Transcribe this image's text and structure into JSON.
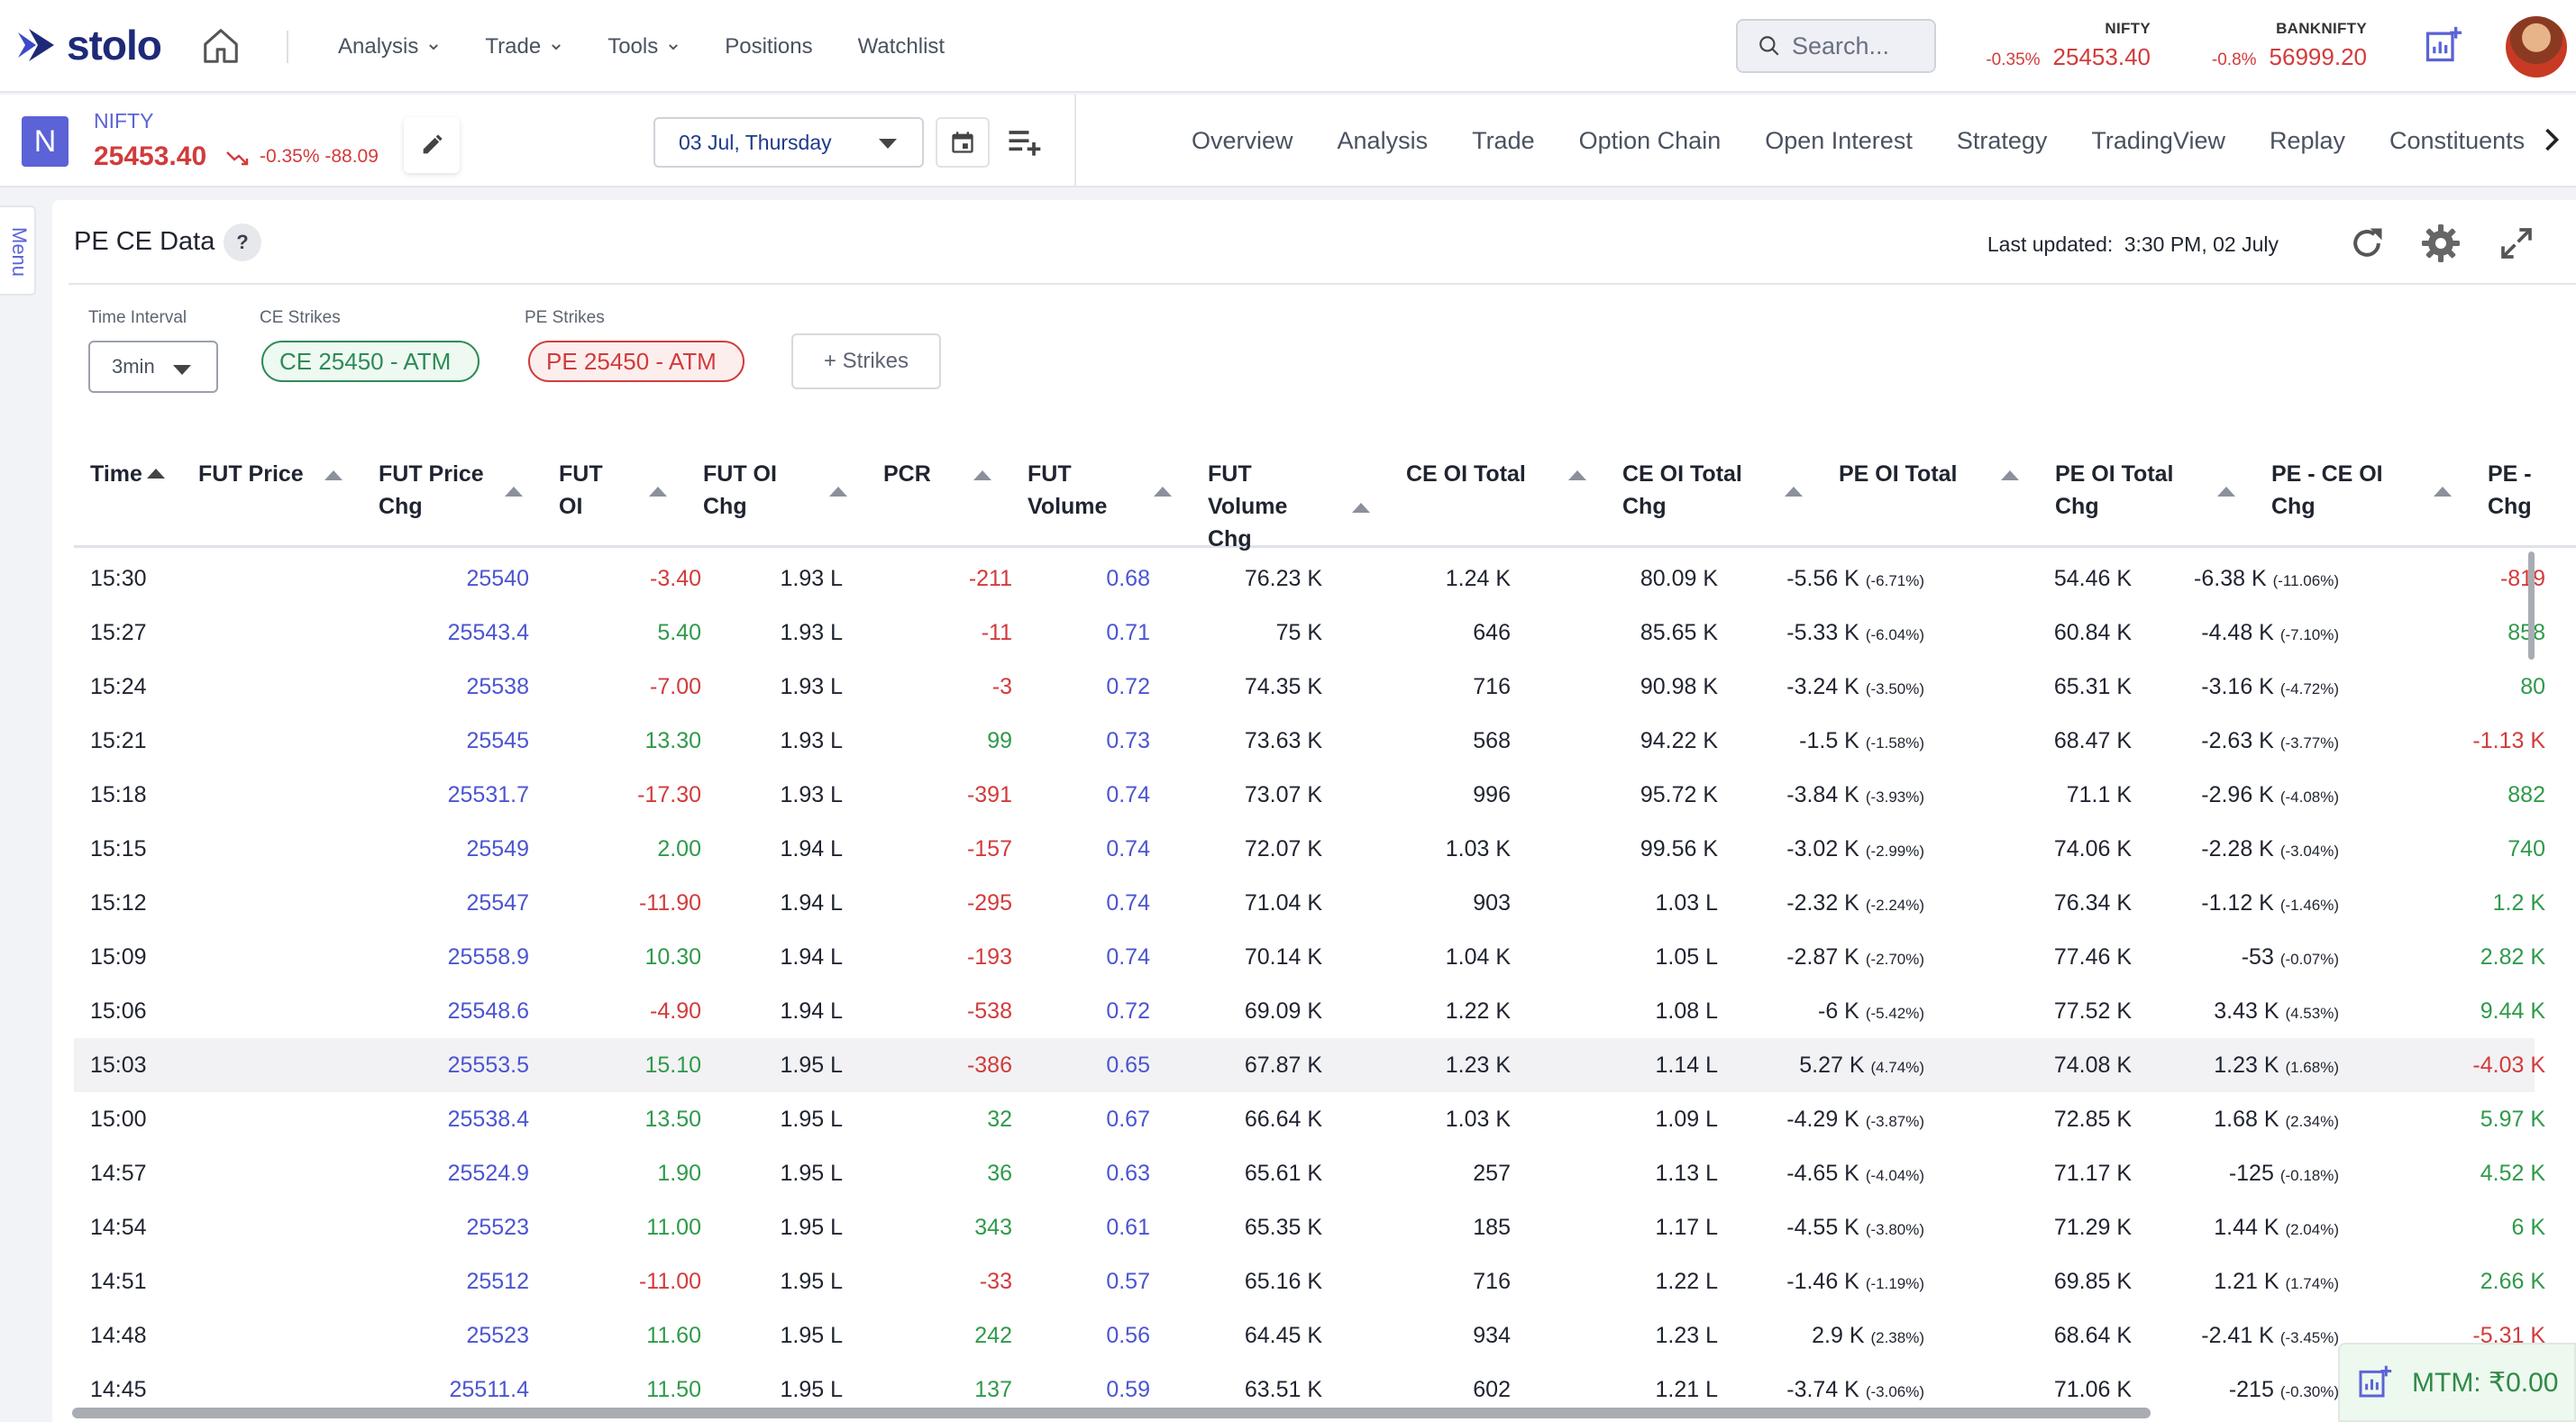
{
  "brand": {
    "name": "stolo"
  },
  "nav": {
    "items": [
      {
        "label": "Analysis",
        "dropdown": true
      },
      {
        "label": "Trade",
        "dropdown": true
      },
      {
        "label": "Tools",
        "dropdown": true
      },
      {
        "label": "Positions",
        "dropdown": false
      },
      {
        "label": "Watchlist",
        "dropdown": false
      }
    ]
  },
  "search": {
    "placeholder": "Search..."
  },
  "indices": [
    {
      "name": "NIFTY",
      "change_pct": "-0.35%",
      "value": "25453.40"
    },
    {
      "name": "BANKNIFTY",
      "change_pct": "-0.8%",
      "value": "56999.20"
    }
  ],
  "symbol": {
    "badge": "N",
    "name": "NIFTY",
    "price": "25453.40",
    "change": "-0.35% -88.09"
  },
  "expiry": {
    "selected": "03 Jul, Thursday"
  },
  "tabs": [
    "Overview",
    "Analysis",
    "Trade",
    "Option Chain",
    "Open Interest",
    "Strategy",
    "TradingView",
    "Replay",
    "Constituents"
  ],
  "side_menu": {
    "label": "Menu"
  },
  "panel": {
    "title": "PE CE Data",
    "help": "?",
    "last_updated_label": "Last updated:",
    "last_updated_value": "3:30 PM, 02 July",
    "time_interval_label": "Time Interval",
    "time_interval_value": "3min",
    "ce_strikes_label": "CE Strikes",
    "ce_strike": "CE 25450 - ATM",
    "pe_strikes_label": "PE Strikes",
    "pe_strike": "PE 25450 - ATM",
    "add_strikes": "+ Strikes"
  },
  "table": {
    "columns": [
      {
        "label": "Time"
      },
      {
        "label": "FUT Price"
      },
      {
        "label": "FUT Price Chg"
      },
      {
        "label": "FUT OI"
      },
      {
        "label": "FUT OI Chg"
      },
      {
        "label": "PCR"
      },
      {
        "label": "FUT Volume"
      },
      {
        "label": "FUT Volume Chg"
      },
      {
        "label": "CE OI Total"
      },
      {
        "label": "CE OI Total Chg"
      },
      {
        "label": "PE OI Total"
      },
      {
        "label": "PE OI Total Chg"
      },
      {
        "label": "PE - CE OI Chg"
      },
      {
        "label": "PE - Chg"
      }
    ],
    "rows": [
      {
        "time": "15:30",
        "fut_price": "25540",
        "fut_price_chg": "-3.40",
        "fut_oi": "1.93 L",
        "fut_oi_chg": "-211",
        "pcr": "0.68",
        "fut_volume": "76.23 K",
        "fut_volume_chg": "1.24 K",
        "ce_oi_total": "80.09 K",
        "ce_oi_chg": "-5.56 K",
        "ce_oi_chg_pct": "(-6.71%)",
        "pe_oi_total": "54.46 K",
        "pe_oi_chg": "-6.38 K",
        "pe_oi_chg_pct": "(-11.06%)",
        "pe_ce_oi_chg": "-819",
        "highlight": false
      },
      {
        "time": "15:27",
        "fut_price": "25543.4",
        "fut_price_chg": "5.40",
        "fut_oi": "1.93 L",
        "fut_oi_chg": "-11",
        "pcr": "0.71",
        "fut_volume": "75 K",
        "fut_volume_chg": "646",
        "ce_oi_total": "85.65 K",
        "ce_oi_chg": "-5.33 K",
        "ce_oi_chg_pct": "(-6.04%)",
        "pe_oi_total": "60.84 K",
        "pe_oi_chg": "-4.48 K",
        "pe_oi_chg_pct": "(-7.10%)",
        "pe_ce_oi_chg": "858",
        "highlight": false
      },
      {
        "time": "15:24",
        "fut_price": "25538",
        "fut_price_chg": "-7.00",
        "fut_oi": "1.93 L",
        "fut_oi_chg": "-3",
        "pcr": "0.72",
        "fut_volume": "74.35 K",
        "fut_volume_chg": "716",
        "ce_oi_total": "90.98 K",
        "ce_oi_chg": "-3.24 K",
        "ce_oi_chg_pct": "(-3.50%)",
        "pe_oi_total": "65.31 K",
        "pe_oi_chg": "-3.16 K",
        "pe_oi_chg_pct": "(-4.72%)",
        "pe_ce_oi_chg": "80",
        "highlight": false
      },
      {
        "time": "15:21",
        "fut_price": "25545",
        "fut_price_chg": "13.30",
        "fut_oi": "1.93 L",
        "fut_oi_chg": "99",
        "pcr": "0.73",
        "fut_volume": "73.63 K",
        "fut_volume_chg": "568",
        "ce_oi_total": "94.22 K",
        "ce_oi_chg": "-1.5 K",
        "ce_oi_chg_pct": "(-1.58%)",
        "pe_oi_total": "68.47 K",
        "pe_oi_chg": "-2.63 K",
        "pe_oi_chg_pct": "(-3.77%)",
        "pe_ce_oi_chg": "-1.13 K",
        "highlight": false
      },
      {
        "time": "15:18",
        "fut_price": "25531.7",
        "fut_price_chg": "-17.30",
        "fut_oi": "1.93 L",
        "fut_oi_chg": "-391",
        "pcr": "0.74",
        "fut_volume": "73.07 K",
        "fut_volume_chg": "996",
        "ce_oi_total": "95.72 K",
        "ce_oi_chg": "-3.84 K",
        "ce_oi_chg_pct": "(-3.93%)",
        "pe_oi_total": "71.1 K",
        "pe_oi_chg": "-2.96 K",
        "pe_oi_chg_pct": "(-4.08%)",
        "pe_ce_oi_chg": "882",
        "highlight": false
      },
      {
        "time": "15:15",
        "fut_price": "25549",
        "fut_price_chg": "2.00",
        "fut_oi": "1.94 L",
        "fut_oi_chg": "-157",
        "pcr": "0.74",
        "fut_volume": "72.07 K",
        "fut_volume_chg": "1.03 K",
        "ce_oi_total": "99.56 K",
        "ce_oi_chg": "-3.02 K",
        "ce_oi_chg_pct": "(-2.99%)",
        "pe_oi_total": "74.06 K",
        "pe_oi_chg": "-2.28 K",
        "pe_oi_chg_pct": "(-3.04%)",
        "pe_ce_oi_chg": "740",
        "highlight": false
      },
      {
        "time": "15:12",
        "fut_price": "25547",
        "fut_price_chg": "-11.90",
        "fut_oi": "1.94 L",
        "fut_oi_chg": "-295",
        "pcr": "0.74",
        "fut_volume": "71.04 K",
        "fut_volume_chg": "903",
        "ce_oi_total": "1.03 L",
        "ce_oi_chg": "-2.32 K",
        "ce_oi_chg_pct": "(-2.24%)",
        "pe_oi_total": "76.34 K",
        "pe_oi_chg": "-1.12 K",
        "pe_oi_chg_pct": "(-1.46%)",
        "pe_ce_oi_chg": "1.2 K",
        "highlight": false
      },
      {
        "time": "15:09",
        "fut_price": "25558.9",
        "fut_price_chg": "10.30",
        "fut_oi": "1.94 L",
        "fut_oi_chg": "-193",
        "pcr": "0.74",
        "fut_volume": "70.14 K",
        "fut_volume_chg": "1.04 K",
        "ce_oi_total": "1.05 L",
        "ce_oi_chg": "-2.87 K",
        "ce_oi_chg_pct": "(-2.70%)",
        "pe_oi_total": "77.46 K",
        "pe_oi_chg": "-53",
        "pe_oi_chg_pct": "(-0.07%)",
        "pe_ce_oi_chg": "2.82 K",
        "highlight": false
      },
      {
        "time": "15:06",
        "fut_price": "25548.6",
        "fut_price_chg": "-4.90",
        "fut_oi": "1.94 L",
        "fut_oi_chg": "-538",
        "pcr": "0.72",
        "fut_volume": "69.09 K",
        "fut_volume_chg": "1.22 K",
        "ce_oi_total": "1.08 L",
        "ce_oi_chg": "-6 K",
        "ce_oi_chg_pct": "(-5.42%)",
        "pe_oi_total": "77.52 K",
        "pe_oi_chg": "3.43 K",
        "pe_oi_chg_pct": "(4.53%)",
        "pe_ce_oi_chg": "9.44 K",
        "highlight": false
      },
      {
        "time": "15:03",
        "fut_price": "25553.5",
        "fut_price_chg": "15.10",
        "fut_oi": "1.95 L",
        "fut_oi_chg": "-386",
        "pcr": "0.65",
        "fut_volume": "67.87 K",
        "fut_volume_chg": "1.23 K",
        "ce_oi_total": "1.14 L",
        "ce_oi_chg": "5.27 K",
        "ce_oi_chg_pct": "(4.74%)",
        "pe_oi_total": "74.08 K",
        "pe_oi_chg": "1.23 K",
        "pe_oi_chg_pct": "(1.68%)",
        "pe_ce_oi_chg": "-4.03 K",
        "highlight": true
      },
      {
        "time": "15:00",
        "fut_price": "25538.4",
        "fut_price_chg": "13.50",
        "fut_oi": "1.95 L",
        "fut_oi_chg": "32",
        "pcr": "0.67",
        "fut_volume": "66.64 K",
        "fut_volume_chg": "1.03 K",
        "ce_oi_total": "1.09 L",
        "ce_oi_chg": "-4.29 K",
        "ce_oi_chg_pct": "(-3.87%)",
        "pe_oi_total": "72.85 K",
        "pe_oi_chg": "1.68 K",
        "pe_oi_chg_pct": "(2.34%)",
        "pe_ce_oi_chg": "5.97 K",
        "highlight": false
      },
      {
        "time": "14:57",
        "fut_price": "25524.9",
        "fut_price_chg": "1.90",
        "fut_oi": "1.95 L",
        "fut_oi_chg": "36",
        "pcr": "0.63",
        "fut_volume": "65.61 K",
        "fut_volume_chg": "257",
        "ce_oi_total": "1.13 L",
        "ce_oi_chg": "-4.65 K",
        "ce_oi_chg_pct": "(-4.04%)",
        "pe_oi_total": "71.17 K",
        "pe_oi_chg": "-125",
        "pe_oi_chg_pct": "(-0.18%)",
        "pe_ce_oi_chg": "4.52 K",
        "highlight": false
      },
      {
        "time": "14:54",
        "fut_price": "25523",
        "fut_price_chg": "11.00",
        "fut_oi": "1.95 L",
        "fut_oi_chg": "343",
        "pcr": "0.61",
        "fut_volume": "65.35 K",
        "fut_volume_chg": "185",
        "ce_oi_total": "1.17 L",
        "ce_oi_chg": "-4.55 K",
        "ce_oi_chg_pct": "(-3.80%)",
        "pe_oi_total": "71.29 K",
        "pe_oi_chg": "1.44 K",
        "pe_oi_chg_pct": "(2.04%)",
        "pe_ce_oi_chg": "6 K",
        "highlight": false
      },
      {
        "time": "14:51",
        "fut_price": "25512",
        "fut_price_chg": "-11.00",
        "fut_oi": "1.95 L",
        "fut_oi_chg": "-33",
        "pcr": "0.57",
        "fut_volume": "65.16 K",
        "fut_volume_chg": "716",
        "ce_oi_total": "1.22 L",
        "ce_oi_chg": "-1.46 K",
        "ce_oi_chg_pct": "(-1.19%)",
        "pe_oi_total": "69.85 K",
        "pe_oi_chg": "1.21 K",
        "pe_oi_chg_pct": "(1.74%)",
        "pe_ce_oi_chg": "2.66 K",
        "highlight": false
      },
      {
        "time": "14:48",
        "fut_price": "25523",
        "fut_price_chg": "11.60",
        "fut_oi": "1.95 L",
        "fut_oi_chg": "242",
        "pcr": "0.56",
        "fut_volume": "64.45 K",
        "fut_volume_chg": "934",
        "ce_oi_total": "1.23 L",
        "ce_oi_chg": "2.9 K",
        "ce_oi_chg_pct": "(2.38%)",
        "pe_oi_total": "68.64 K",
        "pe_oi_chg": "-2.41 K",
        "pe_oi_chg_pct": "(-3.45%)",
        "pe_ce_oi_chg": "-5.31 K",
        "highlight": false
      },
      {
        "time": "14:45",
        "fut_price": "25511.4",
        "fut_price_chg": "11.50",
        "fut_oi": "1.95 L",
        "fut_oi_chg": "137",
        "pcr": "0.59",
        "fut_volume": "63.51 K",
        "fut_volume_chg": "602",
        "ce_oi_total": "1.21 L",
        "ce_oi_chg": "-3.74 K",
        "ce_oi_chg_pct": "(-3.06%)",
        "pe_oi_total": "71.06 K",
        "pe_oi_chg": "-215",
        "pe_oi_chg_pct": "(-0.30%)",
        "pe_ce_oi_chg": "",
        "highlight": false
      }
    ]
  },
  "mtm": {
    "label": "MTM: ₹0.00"
  },
  "colors": {
    "accent": "#5b63d6",
    "brand": "#1e2a78",
    "negative": "#d23b3b",
    "positive": "#2f9a4a",
    "price": "#4b55d0"
  },
  "icons": [
    "home-icon",
    "chevron-down-icon",
    "search-icon",
    "add-chart-icon",
    "user-avatar",
    "trend-down-icon",
    "pencil-icon",
    "calendar-icon",
    "playlist-add-icon",
    "chevron-right-icon",
    "help-icon",
    "refresh-icon",
    "gear-icon",
    "expand-icon",
    "sort-asc-icon"
  ]
}
